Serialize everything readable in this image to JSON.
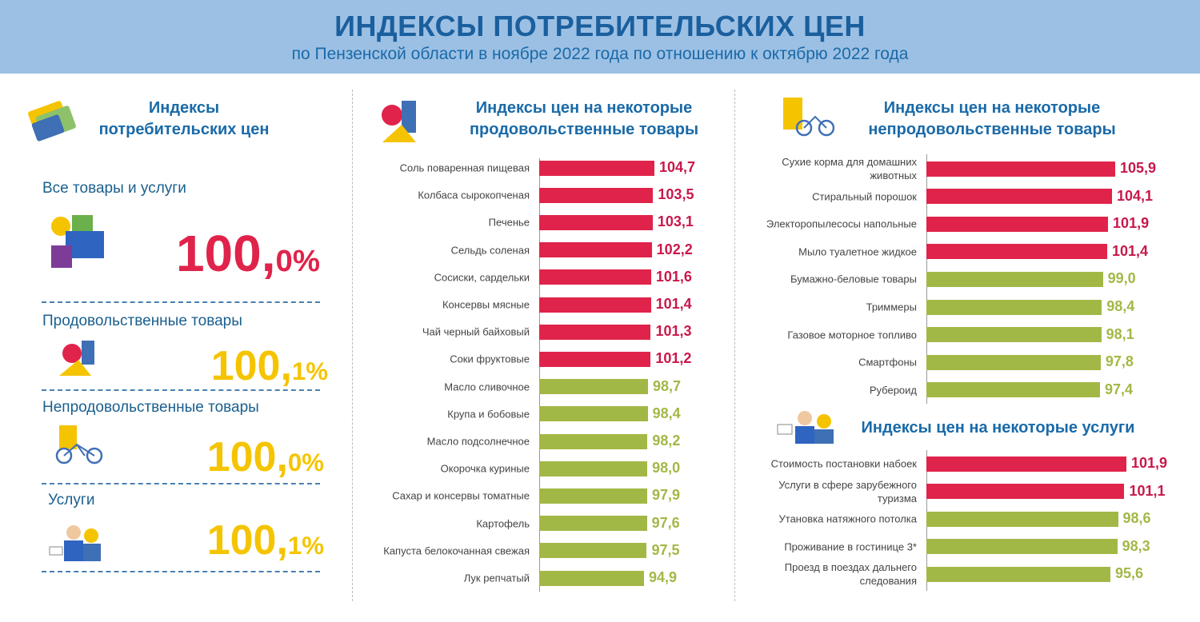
{
  "header": {
    "title": "ИНДЕКСЫ ПОТРЕБИТЕЛЬСКИХ ЦЕН",
    "subtitle": "по Пензенской области в ноябре 2022 года по отношению к октябрю 2022 года"
  },
  "colors": {
    "up": "#e0234a",
    "down": "#a2b846",
    "header_bg": "#9cc0e4",
    "title": "#1a6aa8",
    "yellow": "#f5c400"
  },
  "left": {
    "title": "Индексы\nпотребительских цен",
    "items": [
      {
        "label": "Все товары и услуги",
        "int": "100,",
        "dec": "0%",
        "color": "#e0234a",
        "icon": "gift-boxes-icon"
      },
      {
        "label": "Продовольственные товары",
        "int": "100,",
        "dec": "1%",
        "color": "#f5c400",
        "icon": "food-icon"
      },
      {
        "label": "Непродовольственные товары",
        "int": "100,",
        "dec": "0%",
        "color": "#f5c400",
        "icon": "clothes-bicycle-icon"
      },
      {
        "label": "Услуги",
        "int": "100,",
        "dec": "1%",
        "color": "#f5c400",
        "icon": "services-people-icon"
      }
    ]
  },
  "chart_data": [
    {
      "type": "bar",
      "orientation": "horizontal",
      "title": "Индексы цен на некоторые продовольственные товары",
      "categories": [
        "Соль поваренная пищевая",
        "Колбаса сырокопченая",
        "Печенье",
        "Сельдь соленая",
        "Сосиски, сардельки",
        "Консервы мясные",
        "Чай черный байховый",
        "Соки фруктовые",
        "Масло сливочное",
        "Крупа и бобовые",
        "Масло подсолнечное",
        "Окорочка куриные",
        "Сахар и консервы томатные",
        "Картофель",
        "Капуста белокочанная свежая",
        "Лук репчатый"
      ],
      "values": [
        104.7,
        103.5,
        103.1,
        102.2,
        101.6,
        101.4,
        101.3,
        101.2,
        98.7,
        98.4,
        98.2,
        98.0,
        97.9,
        97.6,
        97.5,
        94.9
      ],
      "labels": [
        "104,7",
        "103,5",
        "103,1",
        "102,2",
        "101,6",
        "101,4",
        "101,3",
        "101,2",
        "98,7",
        "98,4",
        "98,2",
        "98,0",
        "97,9",
        "97,6",
        "97,5",
        "94,9"
      ]
    },
    {
      "type": "bar",
      "orientation": "horizontal",
      "title": "Индексы цен на некоторые непродовольственные товары",
      "categories": [
        "Сухие корма для домашних\nживотных",
        "Стиральный порошок",
        "Электоропылесосы напольные",
        "Мыло туалетное жидкое",
        "Бумажно-беловые товары",
        "Триммеры",
        "Газовое моторное топливо",
        "Смартфоны",
        "Рубероид"
      ],
      "values": [
        105.9,
        104.1,
        101.9,
        101.4,
        99.0,
        98.4,
        98.1,
        97.8,
        97.4
      ],
      "labels": [
        "105,9",
        "104,1",
        "101,9",
        "101,4",
        "99,0",
        "98,4",
        "98,1",
        "97,8",
        "97,4"
      ]
    },
    {
      "type": "bar",
      "orientation": "horizontal",
      "title": "Индексы цен на некоторые услуги",
      "categories": [
        "Стоимость постановки набоек",
        "Услуги в сфере зарубежного\nтуризма",
        "Утановка натяжного потолка",
        "Проживание в гостинице 3*",
        "Проезд в поездах дальнего\nследования"
      ],
      "values": [
        101.9,
        101.1,
        98.6,
        98.3,
        95.6
      ],
      "labels": [
        "101,9",
        "101,1",
        "98,6",
        "98,3",
        "95,6"
      ]
    }
  ]
}
